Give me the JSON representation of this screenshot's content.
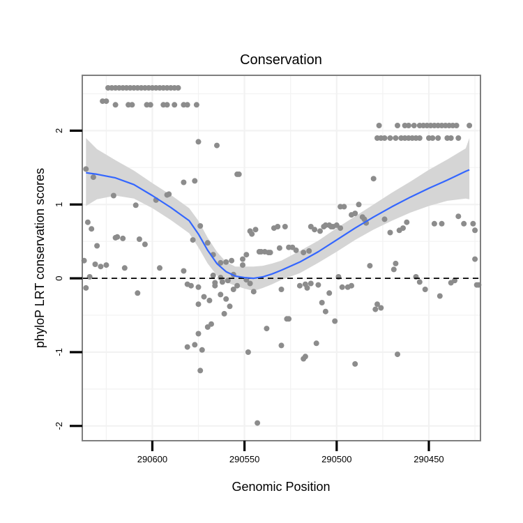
{
  "chart_data": {
    "type": "scatter",
    "title": "Conservation",
    "xlabel": "Genomic Position",
    "ylabel": "phyloP LRT conservation scores",
    "x_reversed": true,
    "xlim": [
      290638,
      290422
    ],
    "ylim": [
      -2.2,
      2.75
    ],
    "x_ticks": [
      290600,
      290550,
      290500,
      290450
    ],
    "x_tick_labels": [
      "290600",
      "290550",
      "290500",
      "290450"
    ],
    "y_ticks": [
      -2,
      -1,
      0,
      1,
      2
    ],
    "y_tick_labels": [
      "-2",
      "-1",
      "0",
      "1",
      "2"
    ],
    "grid": true,
    "reference_line": {
      "y": 0,
      "style": "dashed"
    },
    "colors": {
      "points": "#8c8c8c",
      "smooth_line": "#3366ff",
      "ribbon": "#d3d3d3",
      "panel_border": "#7f7f7f",
      "grid": "#f2f2f2"
    },
    "points": [
      [
        290624,
        2.58
      ],
      [
        290622,
        2.58
      ],
      [
        290620,
        2.58
      ],
      [
        290618,
        2.58
      ],
      [
        290616,
        2.58
      ],
      [
        290614,
        2.58
      ],
      [
        290612,
        2.58
      ],
      [
        290610,
        2.58
      ],
      [
        290608,
        2.58
      ],
      [
        290606,
        2.58
      ],
      [
        290604,
        2.58
      ],
      [
        290602,
        2.58
      ],
      [
        290600,
        2.58
      ],
      [
        290598,
        2.58
      ],
      [
        290596,
        2.58
      ],
      [
        290594,
        2.58
      ],
      [
        290592,
        2.58
      ],
      [
        290590,
        2.58
      ],
      [
        290588,
        2.58
      ],
      [
        290586,
        2.58
      ],
      [
        290627,
        2.4
      ],
      [
        290625,
        2.4
      ],
      [
        290620,
        2.35
      ],
      [
        290613,
        2.35
      ],
      [
        290611,
        2.35
      ],
      [
        290603,
        2.35
      ],
      [
        290601,
        2.35
      ],
      [
        290594,
        2.35
      ],
      [
        290592,
        2.35
      ],
      [
        290588,
        2.35
      ],
      [
        290583,
        2.35
      ],
      [
        290581,
        2.35
      ],
      [
        290576,
        2.35
      ],
      [
        290575,
        1.85
      ],
      [
        290565,
        1.8
      ],
      [
        290554,
        1.41
      ],
      [
        290553,
        1.41
      ],
      [
        290636,
        1.48
      ],
      [
        290632,
        1.37
      ],
      [
        290621,
        1.12
      ],
      [
        290609,
        0.99
      ],
      [
        290598,
        1.06
      ],
      [
        290592,
        1.13
      ],
      [
        290591,
        1.14
      ],
      [
        290583,
        1.3
      ],
      [
        290577,
        1.32
      ],
      [
        290635,
        0.76
      ],
      [
        290633,
        0.67
      ],
      [
        290630,
        0.44
      ],
      [
        290620,
        0.55
      ],
      [
        290619,
        0.56
      ],
      [
        290616,
        0.54
      ],
      [
        290607,
        0.53
      ],
      [
        290604,
        0.46
      ],
      [
        290574,
        0.71
      ],
      [
        290570,
        0.48
      ],
      [
        290578,
        0.52
      ],
      [
        290637,
        0.24
      ],
      [
        290631,
        0.19
      ],
      [
        290628,
        0.16
      ],
      [
        290625,
        0.18
      ],
      [
        290615,
        0.14
      ],
      [
        290596,
        0.14
      ],
      [
        290583,
        0.1
      ],
      [
        290567,
        0.32
      ],
      [
        290563,
        0.21
      ],
      [
        290560,
        0.22
      ],
      [
        290557,
        0.24
      ],
      [
        290634,
        0.02
      ],
      [
        290581,
        -0.08
      ],
      [
        290567,
        0.04
      ],
      [
        290566,
        -0.06
      ],
      [
        290563,
        0.01
      ],
      [
        290556,
        0.05
      ],
      [
        290636,
        -0.13
      ],
      [
        290608,
        -0.2
      ],
      [
        290579,
        -0.1
      ],
      [
        290575,
        -0.35
      ],
      [
        290572,
        -0.25
      ],
      [
        290569,
        -0.3
      ],
      [
        290560,
        -0.28
      ],
      [
        290558,
        -0.38
      ],
      [
        290556,
        -0.15
      ],
      [
        290554,
        -0.1
      ],
      [
        290575,
        -0.12
      ],
      [
        290566,
        -0.1
      ],
      [
        290563,
        -0.22
      ],
      [
        290562,
        -0.05
      ],
      [
        290559,
        -0.03
      ],
      [
        290581,
        -0.93
      ],
      [
        290577,
        -0.9
      ],
      [
        290575,
        -0.75
      ],
      [
        290573,
        -0.97
      ],
      [
        290574,
        -1.25
      ],
      [
        290570,
        -0.66
      ],
      [
        290568,
        -0.62
      ],
      [
        290561,
        -0.48
      ],
      [
        290551,
        0.26
      ],
      [
        290549,
        0.32
      ],
      [
        290547,
        0.64
      ],
      [
        290546,
        0.6
      ],
      [
        290544,
        0.66
      ],
      [
        290542,
        0.36
      ],
      [
        290541,
        0.36
      ],
      [
        290539,
        0.36
      ],
      [
        290537,
        0.35
      ],
      [
        290536,
        0.35
      ],
      [
        290534,
        0.68
      ],
      [
        290532,
        0.7
      ],
      [
        290531,
        0.41
      ],
      [
        290528,
        0.7
      ],
      [
        290526,
        0.42
      ],
      [
        290524,
        0.42
      ],
      [
        290522,
        0.38
      ],
      [
        290518,
        0.35
      ],
      [
        290515,
        0.37
      ],
      [
        290551,
        0.18
      ],
      [
        290549,
        -0.02
      ],
      [
        290547,
        -0.07
      ],
      [
        290545,
        -0.18
      ],
      [
        290530,
        -0.15
      ],
      [
        290520,
        -0.1
      ],
      [
        290517,
        -0.08
      ],
      [
        290516,
        -0.13
      ],
      [
        290548,
        -1.0
      ],
      [
        290538,
        -0.68
      ],
      [
        290530,
        -0.91
      ],
      [
        290527,
        -0.55
      ],
      [
        290526,
        -0.55
      ],
      [
        290518,
        -1.09
      ],
      [
        290517,
        -1.06
      ],
      [
        290511,
        -0.88
      ],
      [
        290543,
        -1.96
      ],
      [
        290514,
        0.7
      ],
      [
        290512,
        0.66
      ],
      [
        290509,
        0.64
      ],
      [
        290507,
        0.7
      ],
      [
        290506,
        0.72
      ],
      [
        290504,
        0.72
      ],
      [
        290503,
        0.7
      ],
      [
        290502,
        0.7
      ],
      [
        290500,
        0.72
      ],
      [
        290498,
        0.68
      ],
      [
        290514,
        -0.07
      ],
      [
        290510,
        -0.09
      ],
      [
        290508,
        -0.33
      ],
      [
        290506,
        -0.45
      ],
      [
        290504,
        -0.2
      ],
      [
        290501,
        -0.58
      ],
      [
        290499,
        0.02
      ],
      [
        290497,
        -0.12
      ],
      [
        290494,
        -0.12
      ],
      [
        290492,
        -0.1
      ],
      [
        290490,
        -1.16
      ],
      [
        290486,
        0.83
      ],
      [
        290498,
        0.97
      ],
      [
        290496,
        0.97
      ],
      [
        290492,
        0.86
      ],
      [
        290490,
        0.88
      ],
      [
        290488,
        1.0
      ],
      [
        290485,
        0.8
      ],
      [
        290482,
        0.17
      ],
      [
        290479,
        -0.42
      ],
      [
        290478,
        -0.35
      ],
      [
        290476,
        -0.4
      ],
      [
        290484,
        0.75
      ],
      [
        290480,
        1.35
      ],
      [
        290478,
        1.9
      ],
      [
        290476,
        1.9
      ],
      [
        290474,
        1.9
      ],
      [
        290471,
        1.9
      ],
      [
        290468,
        1.9
      ],
      [
        290465,
        1.9
      ],
      [
        290463,
        1.9
      ],
      [
        290461,
        1.9
      ],
      [
        290459,
        1.9
      ],
      [
        290457,
        1.9
      ],
      [
        290455,
        1.9
      ],
      [
        290450,
        1.9
      ],
      [
        290448,
        1.9
      ],
      [
        290445,
        1.9
      ],
      [
        290440,
        1.9
      ],
      [
        290438,
        1.9
      ],
      [
        290434,
        1.9
      ],
      [
        290477,
        2.07
      ],
      [
        290467,
        2.07
      ],
      [
        290463,
        2.07
      ],
      [
        290461,
        2.07
      ],
      [
        290458,
        2.07
      ],
      [
        290455,
        2.07
      ],
      [
        290453,
        2.07
      ],
      [
        290451,
        2.07
      ],
      [
        290449,
        2.07
      ],
      [
        290447,
        2.07
      ],
      [
        290445,
        2.07
      ],
      [
        290443,
        2.07
      ],
      [
        290441,
        2.07
      ],
      [
        290439,
        2.07
      ],
      [
        290437,
        2.07
      ],
      [
        290435,
        2.07
      ],
      [
        290428,
        2.07
      ],
      [
        290474,
        0.8
      ],
      [
        290471,
        0.62
      ],
      [
        290469,
        0.12
      ],
      [
        290468,
        0.2
      ],
      [
        290466,
        0.65
      ],
      [
        290464,
        0.68
      ],
      [
        290462,
        0.76
      ],
      [
        290457,
        0.02
      ],
      [
        290455,
        -0.05
      ],
      [
        290452,
        -0.15
      ],
      [
        290447,
        0.74
      ],
      [
        290444,
        -0.24
      ],
      [
        290443,
        0.74
      ],
      [
        290438,
        -0.06
      ],
      [
        290436,
        -0.03
      ],
      [
        290434,
        0.84
      ],
      [
        290431,
        0.74
      ],
      [
        290426,
        0.74
      ],
      [
        290425,
        0.65
      ],
      [
        290424,
        -0.09
      ],
      [
        290423,
        -0.09
      ],
      [
        290425,
        0.26
      ],
      [
        290467,
        -1.03
      ]
    ],
    "smooth": [
      [
        290636,
        1.43
      ],
      [
        290630,
        1.41
      ],
      [
        290620,
        1.36
      ],
      [
        290610,
        1.27
      ],
      [
        290600,
        1.12
      ],
      [
        290590,
        0.96
      ],
      [
        290580,
        0.78
      ],
      [
        290575,
        0.6
      ],
      [
        290570,
        0.38
      ],
      [
        290565,
        0.2
      ],
      [
        290560,
        0.09
      ],
      [
        290555,
        0.03
      ],
      [
        290550,
        0.01
      ],
      [
        290545,
        0.0
      ],
      [
        290540,
        0.02
      ],
      [
        290535,
        0.06
      ],
      [
        290530,
        0.11
      ],
      [
        290520,
        0.22
      ],
      [
        290510,
        0.36
      ],
      [
        290500,
        0.52
      ],
      [
        290490,
        0.68
      ],
      [
        290480,
        0.83
      ],
      [
        290470,
        0.97
      ],
      [
        290460,
        1.1
      ],
      [
        290450,
        1.22
      ],
      [
        290440,
        1.33
      ],
      [
        290430,
        1.45
      ],
      [
        290428,
        1.47
      ]
    ],
    "ribbon_upper": [
      [
        290636,
        1.9
      ],
      [
        290630,
        1.75
      ],
      [
        290620,
        1.6
      ],
      [
        290610,
        1.46
      ],
      [
        290600,
        1.29
      ],
      [
        290590,
        1.13
      ],
      [
        290580,
        0.95
      ],
      [
        290575,
        0.78
      ],
      [
        290570,
        0.55
      ],
      [
        290565,
        0.36
      ],
      [
        290560,
        0.22
      ],
      [
        290555,
        0.16
      ],
      [
        290550,
        0.16
      ],
      [
        290545,
        0.16
      ],
      [
        290540,
        0.17
      ],
      [
        290535,
        0.2
      ],
      [
        290530,
        0.24
      ],
      [
        290520,
        0.37
      ],
      [
        290510,
        0.51
      ],
      [
        290500,
        0.68
      ],
      [
        290490,
        0.84
      ],
      [
        290480,
        1.0
      ],
      [
        290470,
        1.16
      ],
      [
        290460,
        1.31
      ],
      [
        290450,
        1.47
      ],
      [
        290440,
        1.61
      ],
      [
        290430,
        1.76
      ],
      [
        290428,
        1.9
      ]
    ],
    "ribbon_lower": [
      [
        290636,
        0.98
      ],
      [
        290630,
        1.07
      ],
      [
        290620,
        1.12
      ],
      [
        290610,
        1.08
      ],
      [
        290600,
        0.95
      ],
      [
        290590,
        0.79
      ],
      [
        290580,
        0.61
      ],
      [
        290575,
        0.42
      ],
      [
        290570,
        0.2
      ],
      [
        290565,
        0.04
      ],
      [
        290560,
        -0.05
      ],
      [
        290555,
        -0.1
      ],
      [
        290550,
        -0.14
      ],
      [
        290545,
        -0.17
      ],
      [
        290540,
        -0.13
      ],
      [
        290535,
        -0.08
      ],
      [
        290530,
        -0.02
      ],
      [
        290520,
        0.07
      ],
      [
        290510,
        0.21
      ],
      [
        290500,
        0.36
      ],
      [
        290490,
        0.52
      ],
      [
        290480,
        0.66
      ],
      [
        290470,
        0.78
      ],
      [
        290460,
        0.89
      ],
      [
        290450,
        0.98
      ],
      [
        290440,
        1.05
      ],
      [
        290430,
        1.08
      ],
      [
        290428,
        1.07
      ]
    ]
  }
}
